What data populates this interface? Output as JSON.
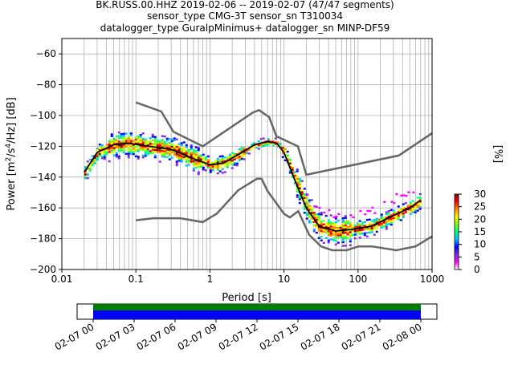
{
  "chart_data": {
    "type": "heatmap",
    "title_lines": [
      "BK.RUSS.00.HHZ   2019-02-06 -- 2019-02-07  (47/47 segments)",
      "sensor_type CMG-3T sensor_sn T310034",
      "datalogger_type GuralpMinimus+ datalogger_sn MINP-DF59"
    ],
    "xlabel": "Period [s]",
    "ylabel_parts": [
      "Power [m",
      "2",
      "/s",
      "4",
      "/Hz] [dB]"
    ],
    "x_scale": "log",
    "xlim": [
      0.01,
      1000
    ],
    "ylim": [
      -200,
      -50
    ],
    "x_ticks": [
      {
        "value": 0.01,
        "label": "0.01"
      },
      {
        "value": 0.1,
        "label": "0.1"
      },
      {
        "value": 1,
        "label": "1"
      },
      {
        "value": 10,
        "label": "10"
      },
      {
        "value": 100,
        "label": "100"
      },
      {
        "value": 1000,
        "label": "1000"
      }
    ],
    "y_ticks": [
      {
        "value": -60,
        "label": "−60"
      },
      {
        "value": -80,
        "label": "−80"
      },
      {
        "value": -100,
        "label": "−100"
      },
      {
        "value": -120,
        "label": "−120"
      },
      {
        "value": -140,
        "label": "−140"
      },
      {
        "value": -160,
        "label": "−160"
      },
      {
        "value": -180,
        "label": "−180"
      },
      {
        "value": -200,
        "label": "−200"
      }
    ],
    "grid": true,
    "noise_models": {
      "high": {
        "x": [
          0.1,
          0.22,
          0.32,
          0.8,
          3.8,
          4.6,
          6.3,
          7.9,
          15.4,
          20,
          354.8,
          1000
        ],
        "y": [
          -91.5,
          -97.4,
          -110.5,
          -120,
          -98,
          -96.5,
          -101,
          -113.5,
          -120,
          -138.5,
          -126,
          -111.5
        ]
      },
      "low": {
        "x": [
          0.1,
          0.17,
          0.4,
          0.8,
          1.24,
          2.4,
          4.3,
          5,
          6,
          10,
          12,
          15.6,
          21.9,
          31.6,
          45,
          70,
          101,
          154,
          328,
          600,
          1000
        ],
        "y": [
          -168,
          -166.7,
          -166.7,
          -169.2,
          -163.7,
          -148.6,
          -141.1,
          -141.1,
          -149,
          -163.8,
          -166.2,
          -162.1,
          -177.5,
          -185,
          -187.5,
          -187.5,
          -185,
          -185,
          -187.5,
          -185,
          -178.5
        ]
      }
    },
    "mode_line": {
      "x": [
        0.02,
        0.03,
        0.05,
        0.08,
        0.15,
        0.3,
        0.6,
        1.0,
        1.5,
        2.5,
        4.0,
        6.0,
        8.0,
        10.0,
        14.0,
        20.0,
        30.0,
        50.0,
        80.0,
        150.0,
        300.0,
        500.0,
        700.0
      ],
      "y": [
        -137,
        -124,
        -119,
        -118,
        -120,
        -122,
        -128,
        -132,
        -131,
        -125,
        -119,
        -117,
        -118,
        -124,
        -142,
        -160,
        -172,
        -175,
        -174,
        -172,
        -165,
        -160,
        -155
      ]
    },
    "colorbar": {
      "label": "[%]",
      "min": 0,
      "max": 30,
      "ticks": [
        {
          "value": 0,
          "label": "0"
        },
        {
          "value": 5,
          "label": "5"
        },
        {
          "value": 10,
          "label": "10"
        },
        {
          "value": 15,
          "label": "15"
        },
        {
          "value": 20,
          "label": "20"
        },
        {
          "value": 25,
          "label": "25"
        },
        {
          "value": 30,
          "label": "30"
        }
      ],
      "colors": [
        "#ffffff",
        "#ff00ff",
        "#8a2be2",
        "#0000ff",
        "#00bfff",
        "#00ff7f",
        "#7fff00",
        "#ffff00",
        "#ff8c00",
        "#ff0000",
        "#8b0000"
      ]
    },
    "coverage": {
      "tick_labels": [
        "02-07 00",
        "02-07 03",
        "02-07 06",
        "02-07 09",
        "02-07 12",
        "02-07 15",
        "02-07 18",
        "02-07 21",
        "02-08 00"
      ],
      "data_color": "#008000",
      "gap_color": "#0000ff"
    }
  }
}
